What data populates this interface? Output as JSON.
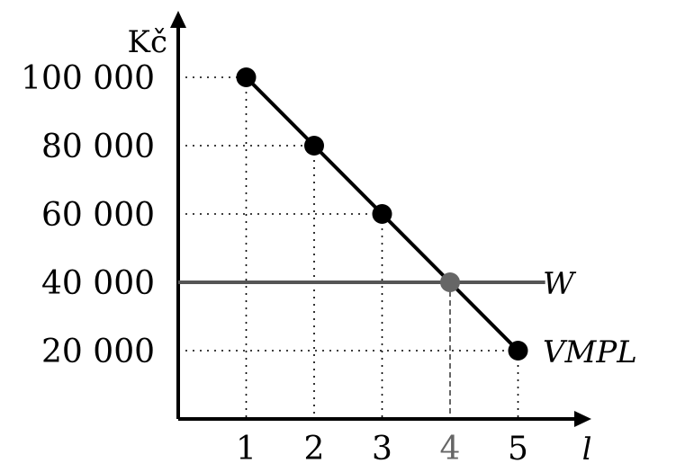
{
  "chart_data": {
    "type": "line",
    "ylabel": "Kč",
    "xlabel": "l",
    "x_ticks": [
      1,
      2,
      3,
      4,
      5
    ],
    "y_ticks": [
      20000,
      40000,
      60000,
      80000,
      100000
    ],
    "y_tick_labels": [
      "20 000",
      "40 000",
      "60 000",
      "80 000",
      "100 000"
    ],
    "xlim": [
      0,
      5.8
    ],
    "ylim": [
      0,
      115000
    ],
    "grid": "dotted guides from axes to each point",
    "series": [
      {
        "name": "VMPL",
        "x": [
          1,
          2,
          3,
          4,
          5
        ],
        "y": [
          100000,
          80000,
          60000,
          40000,
          20000
        ],
        "color": "#000000"
      },
      {
        "name": "W",
        "x": [
          0,
          5.4
        ],
        "y": [
          40000,
          40000
        ],
        "color": "#555555"
      }
    ],
    "intersection": {
      "x": 4,
      "y": 40000,
      "color": "#666666"
    },
    "highlight_tick_color": "#666666"
  }
}
